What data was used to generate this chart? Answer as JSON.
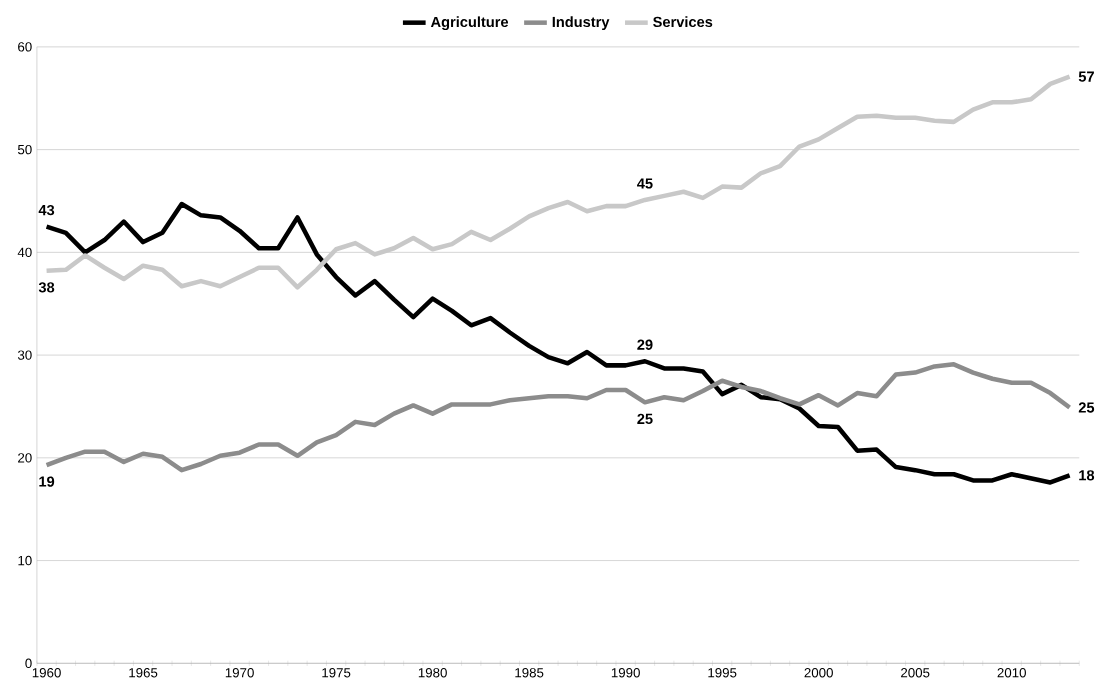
{
  "chart_data": {
    "type": "line",
    "categories": [
      "1960",
      null,
      null,
      null,
      null,
      "1965",
      null,
      null,
      null,
      null,
      "1970",
      null,
      null,
      null,
      null,
      "1975",
      null,
      null,
      null,
      null,
      "1980",
      null,
      null,
      null,
      null,
      "1985",
      null,
      null,
      null,
      null,
      "1990",
      null,
      null,
      null,
      null,
      "1995",
      null,
      null,
      null,
      null,
      "2000",
      null,
      null,
      null,
      null,
      "2005",
      null,
      null,
      null,
      null,
      "2010",
      null,
      null,
      null
    ],
    "ylim": [
      0,
      60
    ],
    "yticks": [
      0,
      10,
      20,
      30,
      40,
      50,
      60
    ],
    "grid": "y",
    "legend": "top",
    "marker": "none",
    "line_style": "solid",
    "series": [
      {
        "name": "Agriculture",
        "color": "#000000",
        "values": [
          42.5,
          41.9,
          40.0,
          41.2,
          43.0,
          41.0,
          41.9,
          44.7,
          43.6,
          43.4,
          42.1,
          40.4,
          40.4,
          43.4,
          39.8,
          37.6,
          35.8,
          37.2,
          35.4,
          33.7,
          35.5,
          34.3,
          32.9,
          33.6,
          32.2,
          30.9,
          29.8,
          29.2,
          30.3,
          29.0,
          29.0,
          29.4,
          28.7,
          28.7,
          28.4,
          26.2,
          27.1,
          25.9,
          25.7,
          24.8,
          23.1,
          23.0,
          20.7,
          20.8,
          19.1,
          18.8,
          18.4,
          18.4,
          17.8,
          17.8,
          18.4,
          18.0,
          17.6,
          18.3
        ],
        "value_labels": [
          "43",
          null,
          null,
          null,
          null,
          null,
          null,
          null,
          null,
          null,
          null,
          null,
          null,
          null,
          null,
          null,
          null,
          null,
          null,
          null,
          null,
          null,
          null,
          null,
          null,
          null,
          null,
          null,
          null,
          null,
          null,
          "29",
          null,
          null,
          null,
          null,
          null,
          null,
          null,
          null,
          null,
          null,
          null,
          null,
          null,
          null,
          null,
          null,
          null,
          null,
          null,
          null,
          null,
          "18"
        ]
      },
      {
        "name": "Industry",
        "color": "#8c8c8c",
        "values": [
          19.3,
          20.0,
          20.6,
          20.6,
          19.6,
          20.4,
          20.1,
          18.8,
          19.4,
          20.2,
          20.5,
          21.3,
          21.3,
          20.2,
          21.5,
          22.2,
          23.5,
          23.2,
          24.3,
          25.1,
          24.3,
          25.2,
          25.2,
          25.2,
          25.6,
          25.8,
          26.0,
          26.0,
          25.8,
          26.6,
          26.6,
          25.4,
          25.9,
          25.6,
          26.5,
          27.5,
          26.9,
          26.5,
          25.8,
          25.2,
          26.1,
          25.1,
          26.3,
          26.0,
          28.1,
          28.3,
          28.9,
          29.1,
          28.3,
          27.7,
          27.3,
          27.3,
          26.3,
          24.9
        ],
        "value_labels": [
          "19",
          null,
          null,
          null,
          null,
          null,
          null,
          null,
          null,
          null,
          null,
          null,
          null,
          null,
          null,
          null,
          null,
          null,
          null,
          null,
          null,
          null,
          null,
          null,
          null,
          null,
          null,
          null,
          null,
          null,
          null,
          "25",
          null,
          null,
          null,
          null,
          null,
          null,
          null,
          null,
          null,
          null,
          null,
          null,
          null,
          null,
          null,
          null,
          null,
          null,
          null,
          null,
          null,
          "25"
        ]
      },
      {
        "name": "Services",
        "color": "#c8c8c8",
        "values": [
          38.2,
          38.3,
          39.7,
          38.5,
          37.4,
          38.7,
          38.3,
          36.7,
          37.2,
          36.7,
          37.6,
          38.5,
          38.5,
          36.6,
          38.3,
          40.3,
          40.9,
          39.8,
          40.4,
          41.4,
          40.3,
          40.8,
          42.0,
          41.2,
          42.3,
          43.5,
          44.3,
          44.9,
          44.0,
          44.5,
          44.5,
          45.1,
          45.5,
          45.9,
          45.3,
          46.4,
          46.3,
          47.7,
          48.4,
          50.3,
          51.0,
          52.1,
          53.2,
          53.3,
          53.1,
          53.1,
          52.8,
          52.7,
          53.9,
          54.6,
          54.6,
          54.9,
          56.4,
          57.1
        ],
        "value_labels": [
          "38",
          null,
          null,
          null,
          null,
          null,
          null,
          null,
          null,
          null,
          null,
          null,
          null,
          null,
          null,
          null,
          null,
          null,
          null,
          null,
          null,
          null,
          null,
          null,
          null,
          null,
          null,
          null,
          null,
          null,
          null,
          "45",
          null,
          null,
          null,
          null,
          null,
          null,
          null,
          null,
          null,
          null,
          null,
          null,
          null,
          null,
          null,
          null,
          null,
          null,
          null,
          null,
          null,
          "57"
        ]
      }
    ]
  }
}
